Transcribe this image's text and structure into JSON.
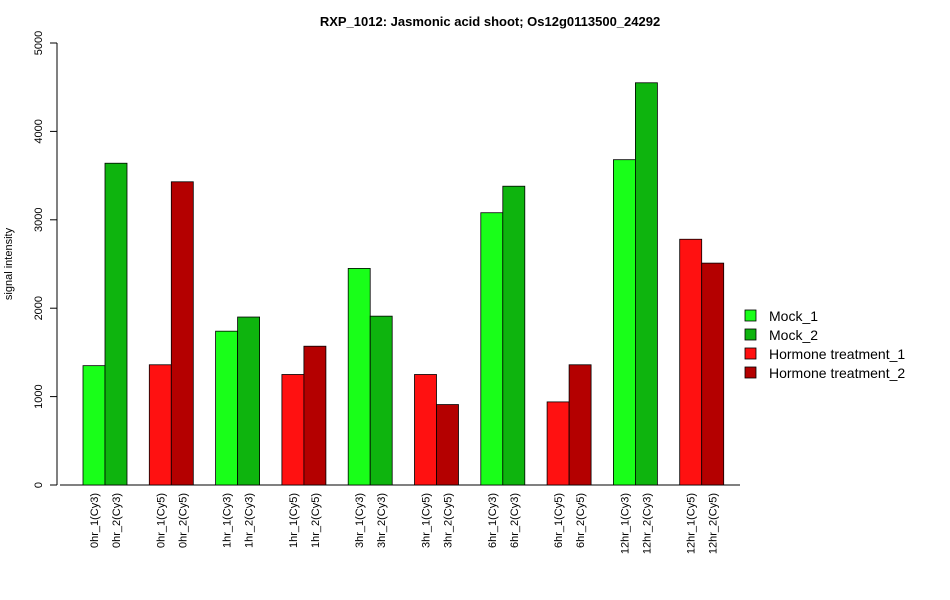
{
  "chart_data": {
    "type": "bar",
    "title": "RXP_1012: Jasmonic acid shoot; Os12g0113500_24292",
    "xlabel": "",
    "ylabel": "signal intensity",
    "ylim": [
      0,
      5000
    ],
    "yticks": [
      "0",
      "1000",
      "2000",
      "3000",
      "4000",
      "5000"
    ],
    "grid": false,
    "legend_position": "right",
    "legend": [
      {
        "name": "Mock_1",
        "color": "#19ff19"
      },
      {
        "name": "Mock_2",
        "color": "#0eb40e"
      },
      {
        "name": "Hormone treatment_1",
        "color": "#ff1111"
      },
      {
        "name": "Hormone treatment_2",
        "color": "#b40000"
      }
    ],
    "groups": [
      {
        "bars": [
          {
            "label": "0hr_1(Cy3)",
            "value": 1350,
            "series": 0
          },
          {
            "label": "0hr_2(Cy3)",
            "value": 3640,
            "series": 1
          }
        ]
      },
      {
        "bars": [
          {
            "label": "0hr_1(Cy5)",
            "value": 1360,
            "series": 2
          },
          {
            "label": "0hr_2(Cy5)",
            "value": 3430,
            "series": 3
          }
        ]
      },
      {
        "bars": [
          {
            "label": "1hr_1(Cy3)",
            "value": 1740,
            "series": 0
          },
          {
            "label": "1hr_2(Cy3)",
            "value": 1900,
            "series": 1
          }
        ]
      },
      {
        "bars": [
          {
            "label": "1hr_1(Cy5)",
            "value": 1250,
            "series": 2
          },
          {
            "label": "1hr_2(Cy5)",
            "value": 1570,
            "series": 3
          }
        ]
      },
      {
        "bars": [
          {
            "label": "3hr_1(Cy3)",
            "value": 2450,
            "series": 0
          },
          {
            "label": "3hr_2(Cy3)",
            "value": 1910,
            "series": 1
          }
        ]
      },
      {
        "bars": [
          {
            "label": "3hr_1(Cy5)",
            "value": 1250,
            "series": 2
          },
          {
            "label": "3hr_2(Cy5)",
            "value": 910,
            "series": 3
          }
        ]
      },
      {
        "bars": [
          {
            "label": "6hr_1(Cy3)",
            "value": 3080,
            "series": 0
          },
          {
            "label": "6hr_2(Cy3)",
            "value": 3380,
            "series": 1
          }
        ]
      },
      {
        "bars": [
          {
            "label": "6hr_1(Cy5)",
            "value": 940,
            "series": 2
          },
          {
            "label": "6hr_2(Cy5)",
            "value": 1360,
            "series": 3
          }
        ]
      },
      {
        "bars": [
          {
            "label": "12hr_1(Cy3)",
            "value": 3680,
            "series": 0
          },
          {
            "label": "12hr_2(Cy3)",
            "value": 4550,
            "series": 1
          }
        ]
      },
      {
        "bars": [
          {
            "label": "12hr_1(Cy5)",
            "value": 2780,
            "series": 2
          },
          {
            "label": "12hr_2(Cy5)",
            "value": 2510,
            "series": 3
          }
        ]
      }
    ]
  }
}
